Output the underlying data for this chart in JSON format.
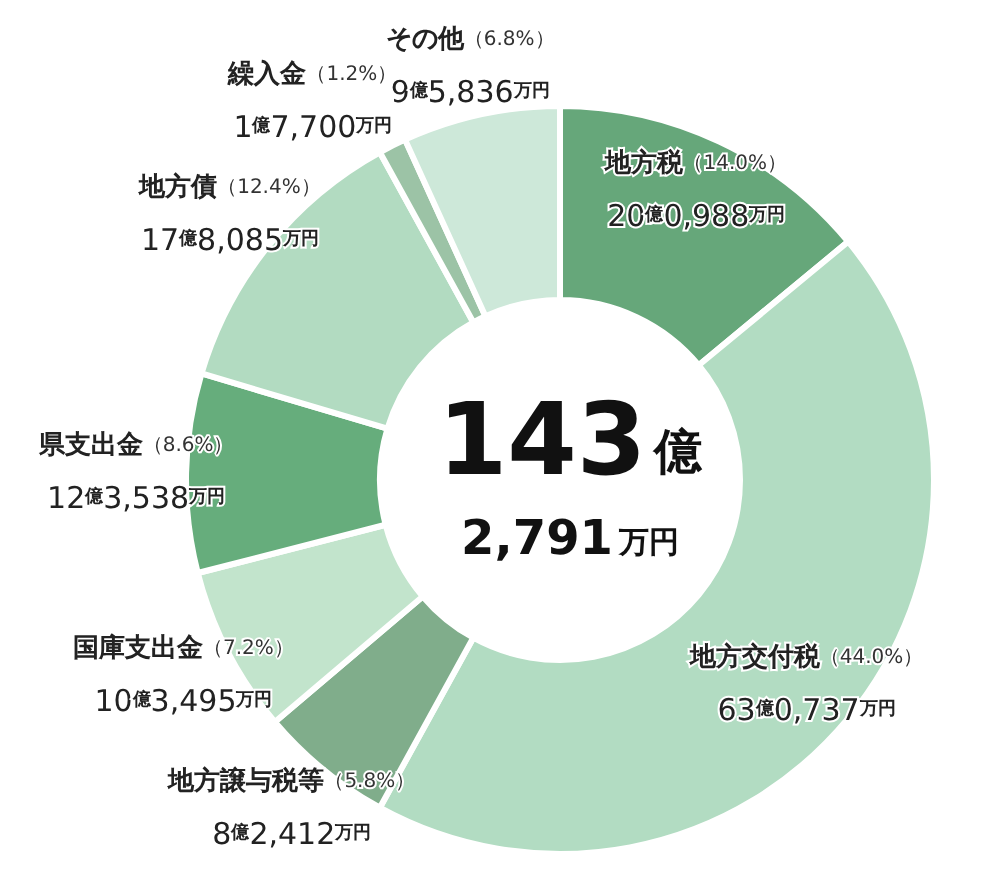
{
  "chart_data": {
    "type": "donut",
    "title": "143億",
    "subtitle": "2,791万円",
    "categories": [
      "地方税",
      "地方交付税",
      "地方譲与税等",
      "国庫支出金",
      "県支出金",
      "地方債",
      "繰入金",
      "その他"
    ],
    "values": [
      14.0,
      44.0,
      5.8,
      7.2,
      8.6,
      12.4,
      1.2,
      6.8
    ],
    "annotations": [
      "20億0,988万円",
      "63億0,737万円",
      "8億2,412万円",
      "10億3,495万円",
      "12億3,538万円",
      "17億8,085万円",
      "1億7,700万円",
      "9億5,836万円"
    ],
    "colors": [
      "#66a77a",
      "#b2dcc2",
      "#80ad8b",
      "#c2e4cc",
      "#66ad7c",
      "#b2dbc1",
      "#9cc3a6",
      "#cde8d9"
    ],
    "value_labels": [
      "（14.0%）",
      "（44.0%）",
      "（5.8%）",
      "（7.2%）",
      "（8.6%）",
      "（12.4%）",
      "（1.2%）",
      "（6.8%）"
    ],
    "legend": false
  }
}
